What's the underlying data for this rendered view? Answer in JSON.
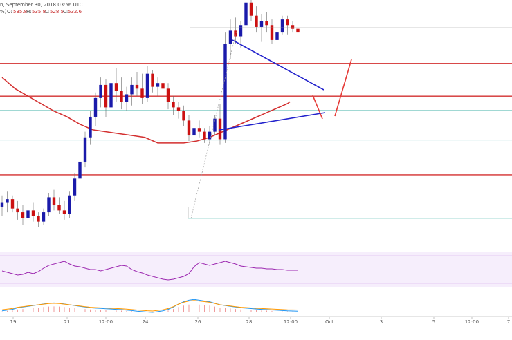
{
  "header": {
    "title_text": "n, September 30, 2018 03:56 UTC",
    "sub_text": "%) ",
    "ohlc": [
      {
        "label": "O:",
        "value": "535.8"
      },
      {
        "label": "H:",
        "value": "535.8"
      },
      {
        "label": "L:",
        "value": "528.5"
      },
      {
        "label": "C:",
        "value": "532.6"
      }
    ]
  },
  "colors": {
    "up": "#1a1aaa",
    "down": "#cc1111",
    "ma": "#d32f2f",
    "hline": "#d32f2f",
    "rsi_fill": "#f3e8fb",
    "rsi_line": "#9c27b0",
    "macd_line": "#2196f3",
    "signal_line": "#ff9800",
    "hist": "#ef9a9a",
    "trend": "#2222cc",
    "arrow": "#e53935"
  },
  "chart_data": {
    "type": "candlestick",
    "x_tick_labels": [
      "19",
      "21",
      "12:00",
      "24",
      "26",
      "28",
      "12:00",
      "Oct",
      "3",
      "5",
      "12:00",
      "7"
    ],
    "y_range": [
      480,
      600
    ],
    "candles": [
      [
        497,
        503,
        492,
        499
      ],
      [
        499,
        505,
        494,
        501
      ],
      [
        501,
        503,
        494,
        496
      ],
      [
        496,
        500,
        490,
        494
      ],
      [
        494,
        498,
        487,
        491
      ],
      [
        491,
        497,
        488,
        495
      ],
      [
        495,
        499,
        489,
        492
      ],
      [
        492,
        494,
        486,
        489
      ],
      [
        489,
        496,
        487,
        494
      ],
      [
        494,
        504,
        492,
        502
      ],
      [
        502,
        506,
        495,
        498
      ],
      [
        498,
        502,
        493,
        495
      ],
      [
        495,
        500,
        490,
        493
      ],
      [
        493,
        505,
        491,
        503
      ],
      [
        503,
        515,
        500,
        512
      ],
      [
        512,
        525,
        509,
        521
      ],
      [
        521,
        537,
        518,
        534
      ],
      [
        534,
        548,
        530,
        545
      ],
      [
        545,
        558,
        540,
        555
      ],
      [
        555,
        566,
        550,
        562
      ],
      [
        562,
        565,
        545,
        550
      ],
      [
        550,
        566,
        546,
        563
      ],
      [
        563,
        571,
        553,
        559
      ],
      [
        559,
        566,
        549,
        553
      ],
      [
        553,
        561,
        548,
        557
      ],
      [
        557,
        566,
        551,
        562
      ],
      [
        562,
        569,
        556,
        560
      ],
      [
        560,
        568,
        552,
        555
      ],
      [
        555,
        572,
        553,
        568
      ],
      [
        568,
        570,
        558,
        561
      ],
      [
        561,
        566,
        556,
        563
      ],
      [
        563,
        565,
        556,
        560
      ],
      [
        560,
        563,
        549,
        553
      ],
      [
        553,
        556,
        546,
        550
      ],
      [
        550,
        553,
        544,
        548
      ],
      [
        548,
        551,
        540,
        543
      ],
      [
        543,
        546,
        532,
        535
      ],
      [
        535,
        541,
        530,
        539
      ],
      [
        539,
        543,
        534,
        537
      ],
      [
        537,
        539,
        531,
        533
      ],
      [
        533,
        540,
        530,
        537
      ],
      [
        537,
        546,
        535,
        544
      ],
      [
        544,
        552,
        530,
        533
      ],
      [
        533,
        590,
        531,
        584
      ],
      [
        584,
        597,
        576,
        591
      ],
      [
        591,
        598,
        584,
        588
      ],
      [
        588,
        596,
        582,
        594
      ],
      [
        594,
        609,
        590,
        606
      ],
      [
        606,
        612,
        596,
        599
      ],
      [
        599,
        604,
        590,
        593
      ],
      [
        593,
        600,
        585,
        596
      ],
      [
        596,
        601,
        590,
        594
      ],
      [
        594,
        597,
        584,
        586
      ],
      [
        586,
        592,
        581,
        590
      ],
      [
        590,
        599,
        589,
        597
      ],
      [
        597,
        599,
        589,
        594
      ],
      [
        594,
        596,
        590,
        592
      ],
      [
        592,
        593,
        589,
        590
      ]
    ],
    "horizontal_levels": [
      610,
      573.5,
      556,
      514,
      532.5,
      548.5
    ],
    "moving_average": [
      [
        0,
        566
      ],
      [
        5,
        560
      ],
      [
        10,
        556
      ],
      [
        15,
        552
      ],
      [
        20,
        548
      ],
      [
        25,
        545
      ],
      [
        30,
        541
      ],
      [
        35,
        538
      ],
      [
        40,
        537
      ],
      [
        45,
        536
      ],
      [
        50,
        535
      ],
      [
        55,
        534
      ],
      [
        60,
        531
      ],
      [
        65,
        531
      ],
      [
        70,
        531
      ],
      [
        75,
        532
      ],
      [
        80,
        534
      ],
      [
        85,
        537
      ],
      [
        90,
        540
      ],
      [
        95,
        543
      ],
      [
        100,
        546
      ],
      [
        105,
        549
      ],
      [
        110,
        552
      ],
      [
        111,
        553
      ]
    ],
    "rsi": [
      48,
      46,
      44,
      42,
      43,
      46,
      44,
      47,
      52,
      56,
      58,
      60,
      62,
      58,
      55,
      54,
      52,
      50,
      50,
      48,
      50,
      52,
      54,
      56,
      55,
      50,
      47,
      45,
      42,
      40,
      38,
      36,
      35,
      36,
      38,
      40,
      44,
      54,
      60,
      58,
      56,
      58,
      60,
      62,
      60,
      58,
      55,
      54,
      53,
      52,
      52,
      51,
      51,
      50,
      50,
      49,
      49,
      49
    ],
    "macd_hist": [
      0.1,
      0.15,
      0.2,
      0.3,
      0.35,
      0.4,
      0.45,
      0.5,
      0.55,
      0.6,
      0.62,
      0.6,
      0.55,
      0.5,
      0.45,
      0.4,
      0.35,
      0.3,
      0.28,
      0.26,
      0.24,
      0.22,
      0.2,
      0.18,
      0.15,
      0.12,
      0.08,
      0.05,
      0.02,
      0.0,
      0.05,
      0.1,
      0.2,
      0.35,
      0.55,
      0.7,
      0.8,
      0.85,
      0.8,
      0.75,
      0.7,
      0.6,
      0.5,
      0.45,
      0.4,
      0.35,
      0.3,
      0.28,
      0.25,
      0.22,
      0.2,
      0.18,
      0.16,
      0.14,
      0.12,
      0.1,
      0.09,
      0.08
    ]
  }
}
